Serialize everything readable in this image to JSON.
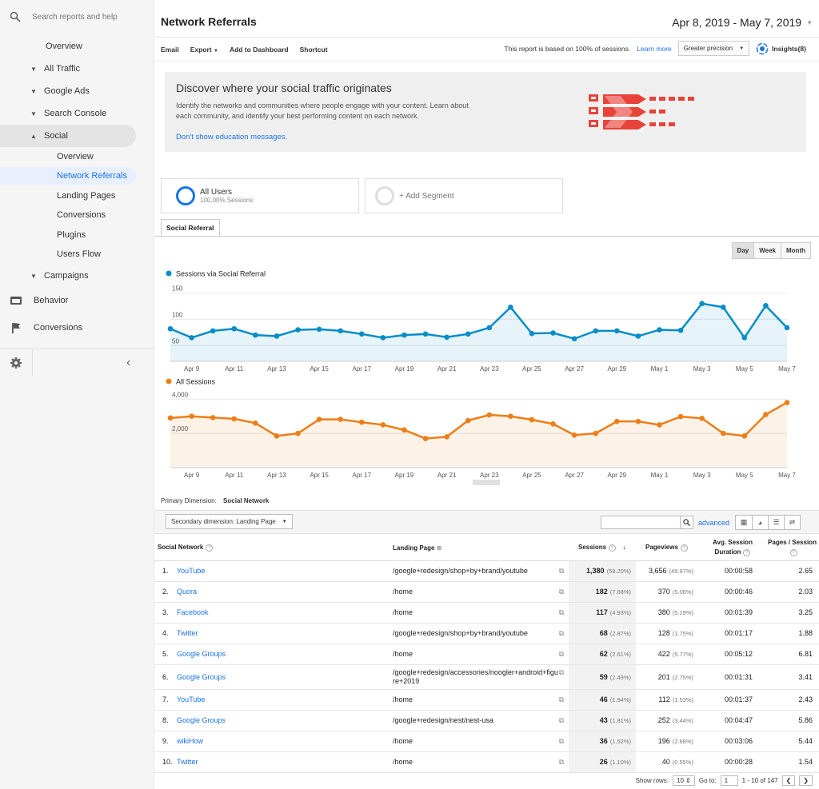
{
  "sidebar": {
    "search_placeholder": "Search reports and help",
    "items": [
      {
        "label": "Overview",
        "caret": ""
      },
      {
        "label": "All Traffic",
        "caret": "▼"
      },
      {
        "label": "Google Ads",
        "caret": "▼"
      },
      {
        "label": "Search Console",
        "caret": "▼"
      },
      {
        "label": "Social",
        "caret": "▲"
      },
      {
        "label": "Overview",
        "caret": ""
      },
      {
        "label": "Network Referrals",
        "caret": ""
      },
      {
        "label": "Landing Pages",
        "caret": ""
      },
      {
        "label": "Conversions",
        "caret": ""
      },
      {
        "label": "Plugins",
        "caret": ""
      },
      {
        "label": "Users Flow",
        "caret": ""
      },
      {
        "label": "Campaigns",
        "caret": "▼"
      },
      {
        "label": "Behavior",
        "caret": ""
      },
      {
        "label": "Conversions",
        "caret": ""
      }
    ],
    "collapse": "‹"
  },
  "header": {
    "title": "Network Referrals",
    "date_range": "Apr 8, 2019 - May 7, 2019"
  },
  "toolbar": {
    "email": "Email",
    "export": "Export",
    "add_dashboard": "Add to Dashboard",
    "shortcut": "Shortcut",
    "sample_note": "This report is based on 100% of sessions.",
    "learn_more": "Learn more",
    "precision": "Greater precision",
    "insights": "Insights(8)"
  },
  "education": {
    "title": "Discover where your social traffic originates",
    "body": "Identify the networks and communities where people engage with your content. Learn about each community, and identify your best performing content on each network.",
    "dismiss": "Don't show education messages."
  },
  "segments": {
    "all_users": "All Users",
    "all_users_sub": "100.00% Sessions",
    "add_segment": "+ Add Segment"
  },
  "tab": "Social Referral",
  "period": [
    "Day",
    "Week",
    "Month"
  ],
  "chart_data": [
    {
      "type": "line",
      "series": [
        {
          "name": "Sessions via Social Referral",
          "color": "#058dc7",
          "values": [
            82,
            65,
            78,
            82,
            70,
            68,
            80,
            81,
            78,
            72,
            65,
            70,
            72,
            66,
            72,
            84,
            123,
            73,
            74,
            63,
            78,
            78,
            68,
            80,
            79,
            130,
            123,
            65,
            126,
            84
          ]
        }
      ],
      "x": [
        "Apr 8",
        "Apr 9",
        "Apr 10",
        "Apr 11",
        "Apr 12",
        "Apr 13",
        "Apr 14",
        "Apr 15",
        "Apr 16",
        "Apr 17",
        "Apr 18",
        "Apr 19",
        "Apr 20",
        "Apr 21",
        "Apr 22",
        "Apr 23",
        "Apr 24",
        "Apr 25",
        "Apr 26",
        "Apr 27",
        "Apr 28",
        "Apr 29",
        "Apr 30",
        "May 1",
        "May 2",
        "May 3",
        "May 4",
        "May 5",
        "May 6",
        "May 7"
      ],
      "x_ticks": [
        "Apr 9",
        "Apr 11",
        "Apr 13",
        "Apr 15",
        "Apr 17",
        "Apr 19",
        "Apr 21",
        "Apr 23",
        "Apr 25",
        "Apr 27",
        "Apr 29",
        "May 1",
        "May 3",
        "May 5",
        "May 7"
      ],
      "y_ticks": [
        50,
        100,
        150
      ],
      "ylim": [
        20,
        160
      ]
    },
    {
      "type": "line",
      "series": [
        {
          "name": "All Sessions",
          "color": "#ed7e17",
          "values": [
            2900,
            3000,
            2920,
            2850,
            2600,
            1850,
            2000,
            2820,
            2820,
            2650,
            2500,
            2200,
            1700,
            1800,
            2750,
            3080,
            3000,
            2800,
            2550,
            1900,
            2000,
            2700,
            2700,
            2500,
            2980,
            2880,
            2000,
            1850,
            3100,
            3800
          ]
        }
      ],
      "x": [
        "Apr 8",
        "Apr 9",
        "Apr 10",
        "Apr 11",
        "Apr 12",
        "Apr 13",
        "Apr 14",
        "Apr 15",
        "Apr 16",
        "Apr 17",
        "Apr 18",
        "Apr 19",
        "Apr 20",
        "Apr 21",
        "Apr 22",
        "Apr 23",
        "Apr 24",
        "Apr 25",
        "Apr 26",
        "Apr 27",
        "Apr 28",
        "Apr 29",
        "Apr 30",
        "May 1",
        "May 2",
        "May 3",
        "May 4",
        "May 5",
        "May 6",
        "May 7"
      ],
      "x_ticks": [
        "Apr 9",
        "Apr 11",
        "Apr 13",
        "Apr 15",
        "Apr 17",
        "Apr 19",
        "Apr 21",
        "Apr 23",
        "Apr 25",
        "Apr 27",
        "Apr 29",
        "May 1",
        "May 3",
        "May 5",
        "May 7"
      ],
      "y_ticks": [
        "2,000",
        "4,000"
      ],
      "ylim": [
        0,
        4200
      ]
    }
  ],
  "table": {
    "primary_dim_label": "Primary Dimension:",
    "primary_dim_value": "Social Network",
    "secondary_dim": "Secondary dimension: Landing Page",
    "advanced": "advanced",
    "headers": {
      "network": "Social Network",
      "landing": "Landing Page",
      "sessions": "Sessions",
      "pageviews": "Pageviews",
      "duration": "Avg. Session Duration",
      "pps": "Pages / Session"
    },
    "rows": [
      {
        "n": "1.",
        "network": "YouTube",
        "landing": "/google+redesign/shop+by+brand/youtube",
        "sessions": "1,380",
        "sessions_pct": "(58.20%)",
        "pageviews": "3,656",
        "pageviews_pct": "(49.97%)",
        "duration": "00:00:58",
        "pps": "2.65"
      },
      {
        "n": "2.",
        "network": "Quora",
        "landing": "/home",
        "sessions": "182",
        "sessions_pct": "(7.68%)",
        "pageviews": "370",
        "pageviews_pct": "(5.06%)",
        "duration": "00:00:46",
        "pps": "2.03"
      },
      {
        "n": "3.",
        "network": "Facebook",
        "landing": "/home",
        "sessions": "117",
        "sessions_pct": "(4.93%)",
        "pageviews": "380",
        "pageviews_pct": "(5.19%)",
        "duration": "00:01:39",
        "pps": "3.25"
      },
      {
        "n": "4.",
        "network": "Twitter",
        "landing": "/google+redesign/shop+by+brand/youtube",
        "sessions": "68",
        "sessions_pct": "(2.87%)",
        "pageviews": "128",
        "pageviews_pct": "(1.75%)",
        "duration": "00:01:17",
        "pps": "1.88"
      },
      {
        "n": "5.",
        "network": "Google Groups",
        "landing": "/home",
        "sessions": "62",
        "sessions_pct": "(2.61%)",
        "pageviews": "422",
        "pageviews_pct": "(5.77%)",
        "duration": "00:05:12",
        "pps": "6.81"
      },
      {
        "n": "6.",
        "network": "Google Groups",
        "landing": "/google+redesign/accessories/noogler+android+figure+2019",
        "sessions": "59",
        "sessions_pct": "(2.49%)",
        "pageviews": "201",
        "pageviews_pct": "(2.75%)",
        "duration": "00:01:31",
        "pps": "3.41"
      },
      {
        "n": "7.",
        "network": "YouTube",
        "landing": "/home",
        "sessions": "46",
        "sessions_pct": "(1.94%)",
        "pageviews": "112",
        "pageviews_pct": "(1.53%)",
        "duration": "00:01:37",
        "pps": "2.43"
      },
      {
        "n": "8.",
        "network": "Google Groups",
        "landing": "/google+redesign/nest/nest-usa",
        "sessions": "43",
        "sessions_pct": "(1.81%)",
        "pageviews": "252",
        "pageviews_pct": "(3.44%)",
        "duration": "00:04:47",
        "pps": "5.86"
      },
      {
        "n": "9.",
        "network": "wikiHow",
        "landing": "/home",
        "sessions": "36",
        "sessions_pct": "(1.52%)",
        "pageviews": "196",
        "pageviews_pct": "(2.68%)",
        "duration": "00:03:06",
        "pps": "5.44"
      },
      {
        "n": "10.",
        "network": "Twitter",
        "landing": "/home",
        "sessions": "26",
        "sessions_pct": "(1.10%)",
        "pageviews": "40",
        "pageviews_pct": "(0.55%)",
        "duration": "00:00:28",
        "pps": "1.54"
      }
    ]
  },
  "pager": {
    "show_rows": "Show rows:",
    "rows_value": "10",
    "goto": "Go to:",
    "goto_value": "1",
    "range": "1 - 10 of 147"
  }
}
